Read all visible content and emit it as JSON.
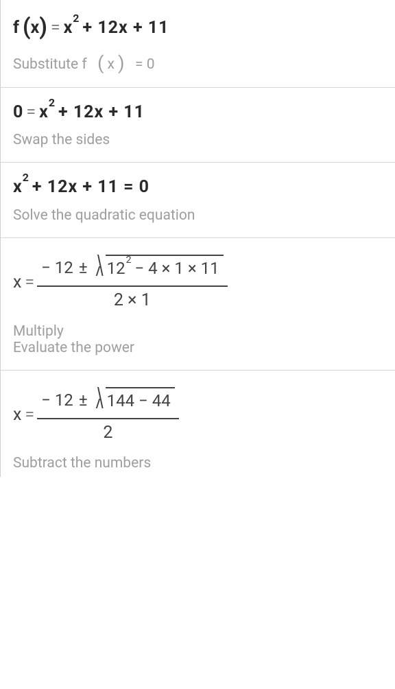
{
  "steps": [
    {
      "eq_prefix_func": "f",
      "eq_prefix_var": "x",
      "eq_rhs_before_sup": "x",
      "eq_rhs_sup": "2",
      "eq_rhs_after": "+ 12x + 11",
      "equals": "=",
      "desc_before": "Substitute f",
      "desc_var": "x",
      "desc_after": "= 0"
    },
    {
      "eq_lhs": "0",
      "equals": "=",
      "eq_rhs_before_sup": "x",
      "eq_rhs_sup": "2",
      "eq_rhs_after": "+ 12x + 11",
      "desc": "Swap the sides"
    },
    {
      "eq_rhs_before_sup": "x",
      "eq_rhs_sup": "2",
      "eq_rhs_after": "+ 12x + 11 = 0",
      "desc": "Solve the quadratic equation"
    },
    {
      "eq_lhs": "x",
      "equals": "=",
      "frac_top_before": "− 12",
      "pm": "±",
      "sqrt_before_sup": "12",
      "sqrt_sup": "2",
      "sqrt_after": "− 4 × 1 × 11",
      "frac_bottom": "2 × 1",
      "desc_line1": "Multiply",
      "desc_line2": "Evaluate the power"
    },
    {
      "eq_lhs": "x",
      "equals": "=",
      "frac_top_before": "− 12",
      "pm": "±",
      "sqrt_content": "144 − 44",
      "frac_bottom": "2",
      "desc": "Subtract the numbers"
    }
  ],
  "colors": {
    "text_dark": "#2a2a2a",
    "text_mid": "#444444",
    "text_grey": "#888888",
    "desc_grey": "#9e9e9e",
    "border": "#d8d8d8"
  }
}
